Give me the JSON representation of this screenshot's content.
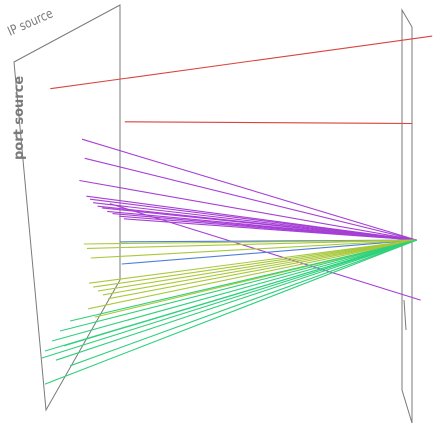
{
  "chart_data": {
    "type": "parallel-coordinates-3d",
    "axes": [
      {
        "key": "ip_source",
        "label": "IP source"
      },
      {
        "key": "port_source",
        "label": "port source"
      }
    ],
    "colors": {
      "red": "#d9433c",
      "purple": "#a63fd6",
      "blue": "#4f7fd9",
      "yellow_green": "#a8c83a",
      "green": "#2fd07c",
      "axis": "#7a7a7a"
    },
    "series": [
      {
        "color": "red",
        "lines": [
          {
            "from": [
              0.114,
              0.204
            ],
            "to": [
              0.98,
              0.083
            ]
          },
          {
            "from": [
              0.283,
              0.28
            ],
            "to": [
              0.934,
              0.284
            ]
          }
        ]
      },
      {
        "color": "purple",
        "lines": [
          {
            "from": [
              0.186,
              0.32
            ],
            "to": [
              0.945,
              0.552
            ]
          },
          {
            "from": [
              0.192,
              0.364
            ],
            "to": [
              0.945,
              0.552
            ]
          },
          {
            "from": [
              0.18,
              0.415
            ],
            "to": [
              0.945,
              0.552
            ]
          },
          {
            "from": [
              0.196,
              0.451
            ],
            "to": [
              0.945,
              0.552
            ]
          },
          {
            "from": [
              0.204,
              0.458
            ],
            "to": [
              0.945,
              0.552
            ]
          },
          {
            "from": [
              0.211,
              0.466
            ],
            "to": [
              0.945,
              0.552
            ]
          },
          {
            "from": [
              0.221,
              0.474
            ],
            "to": [
              0.945,
              0.552
            ]
          },
          {
            "from": [
              0.231,
              0.478
            ],
            "to": [
              0.945,
              0.552
            ]
          },
          {
            "from": [
              0.243,
              0.486
            ],
            "to": [
              0.945,
              0.552
            ]
          },
          {
            "from": [
              0.255,
              0.491
            ],
            "to": [
              0.945,
              0.552
            ]
          },
          {
            "from": [
              0.27,
              0.497
            ],
            "to": [
              0.945,
              0.552
            ]
          },
          {
            "from": [
              0.281,
              0.503
            ],
            "to": [
              0.945,
              0.552
            ]
          },
          {
            "from": [
              0.249,
              0.468
            ],
            "to": [
              0.954,
              0.69
            ]
          }
        ]
      },
      {
        "color": "blue",
        "lines": [
          {
            "from": [
              0.272,
              0.556
            ],
            "to": [
              0.945,
              0.552
            ]
          },
          {
            "from": [
              0.276,
              0.607
            ],
            "to": [
              0.945,
              0.552
            ]
          }
        ]
      },
      {
        "color": "yellow_green",
        "lines": [
          {
            "from": [
              0.19,
              0.561
            ],
            "to": [
              0.945,
              0.552
            ]
          },
          {
            "from": [
              0.197,
              0.571
            ],
            "to": [
              0.945,
              0.552
            ]
          },
          {
            "from": [
              0.206,
              0.593
            ],
            "to": [
              0.945,
              0.552
            ]
          },
          {
            "from": [
              0.202,
              0.651
            ],
            "to": [
              0.945,
              0.552
            ]
          },
          {
            "from": [
              0.211,
              0.66
            ],
            "to": [
              0.945,
              0.552
            ]
          },
          {
            "from": [
              0.222,
              0.669
            ],
            "to": [
              0.945,
              0.552
            ]
          },
          {
            "from": [
              0.233,
              0.678
            ],
            "to": [
              0.945,
              0.552
            ]
          },
          {
            "from": [
              0.245,
              0.687
            ],
            "to": [
              0.945,
              0.552
            ]
          },
          {
            "from": [
              0.2,
              0.71
            ],
            "to": [
              0.945,
              0.552
            ]
          },
          {
            "from": [
              0.215,
              0.729
            ],
            "to": [
              0.945,
              0.552
            ]
          }
        ]
      },
      {
        "color": "green",
        "lines": [
          {
            "from": [
              0.159,
              0.738
            ],
            "to": [
              0.945,
              0.552
            ]
          },
          {
            "from": [
              0.136,
              0.761
            ],
            "to": [
              0.945,
              0.552
            ]
          },
          {
            "from": [
              0.118,
              0.784
            ],
            "to": [
              0.945,
              0.552
            ]
          },
          {
            "from": [
              0.145,
              0.795
            ],
            "to": [
              0.945,
              0.552
            ]
          },
          {
            "from": [
              0.102,
              0.807
            ],
            "to": [
              0.945,
              0.552
            ]
          },
          {
            "from": [
              0.127,
              0.828
            ],
            "to": [
              0.945,
              0.552
            ]
          },
          {
            "from": [
              0.159,
              0.841
            ],
            "to": [
              0.945,
              0.552
            ]
          },
          {
            "from": [
              0.095,
              0.823
            ],
            "to": [
              0.945,
              0.552
            ]
          },
          {
            "from": [
              0.102,
              0.883
            ],
            "to": [
              0.945,
              0.552
            ]
          }
        ]
      }
    ]
  }
}
